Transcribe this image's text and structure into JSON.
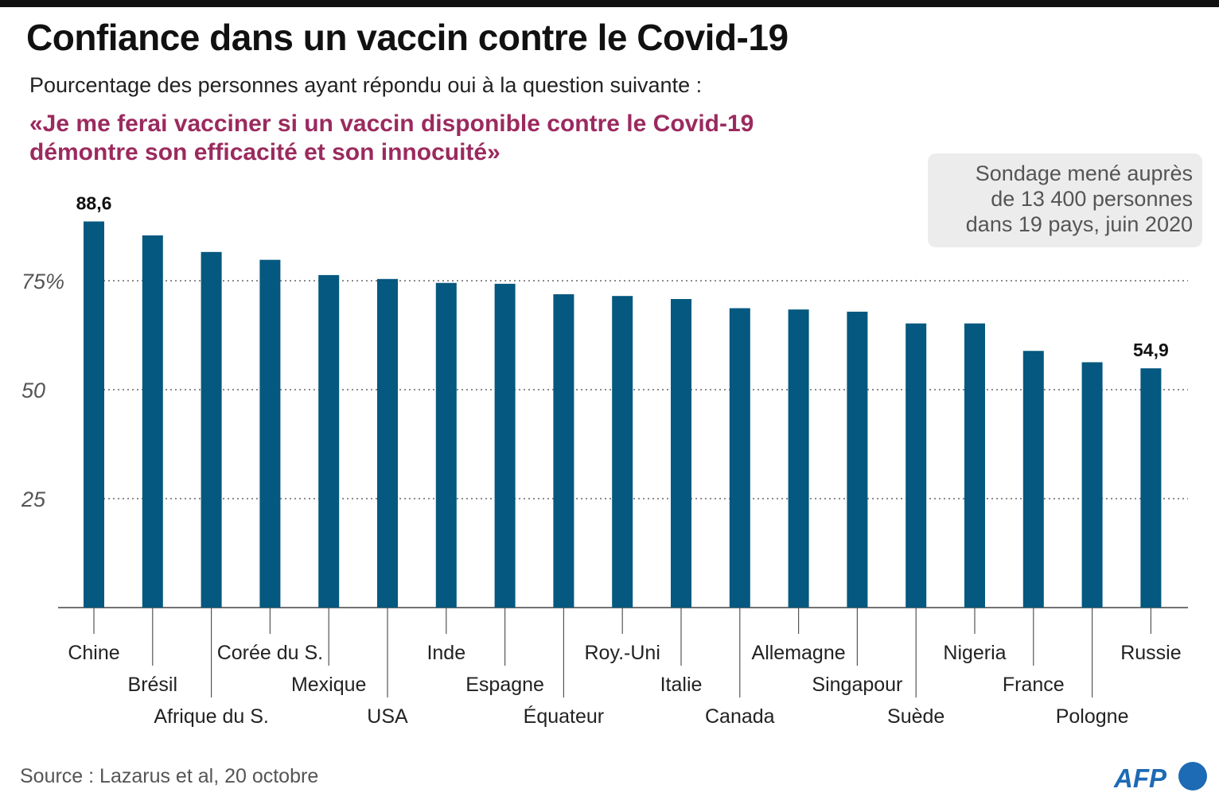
{
  "title": "Confiance dans un vaccin contre le Covid-19",
  "subtitle": "Pourcentage des personnes ayant répondu oui à la question suivante :",
  "quote_line1": "«Je me ferai vacciner si un vaccin disponible contre le Covid-19",
  "quote_line2": "démontre son efficacité et son innocuité»",
  "note_line1": "Sondage mené auprès",
  "note_line2": "de 13 400 personnes",
  "note_line3": "dans 19 pays, juin 2020",
  "source": "Source : Lazarus et al, 20 octobre",
  "logo_text": "AFP",
  "colors": {
    "bar": "#05587f",
    "quote": "#9b2a5e",
    "logo": "#1d6ab5"
  },
  "chart_data": {
    "type": "bar",
    "title": "Confiance dans un vaccin contre le Covid-19",
    "categories": [
      "Chine",
      "Brésil",
      "Afrique du S.",
      "Corée du S.",
      "Mexique",
      "USA",
      "Inde",
      "Espagne",
      "Équateur",
      "Roy.-Uni",
      "Italie",
      "Canada",
      "Allemagne",
      "Singapour",
      "Suède",
      "Nigeria",
      "France",
      "Pologne",
      "Russie"
    ],
    "values": [
      88.6,
      85.4,
      81.6,
      79.8,
      76.3,
      75.4,
      74.5,
      74.3,
      71.9,
      71.5,
      70.8,
      68.7,
      68.4,
      67.9,
      65.2,
      65.2,
      58.9,
      56.3,
      54.9
    ],
    "data_labels": [
      {
        "category": "Chine",
        "text": "88,6"
      },
      {
        "category": "Russie",
        "text": "54,9"
      }
    ],
    "yticks": [
      {
        "value": 25,
        "label": "25"
      },
      {
        "value": 50,
        "label": "50"
      },
      {
        "value": 75,
        "label": "75%"
      }
    ],
    "ylim": [
      0,
      100
    ],
    "xlabel": "",
    "ylabel": "",
    "grid": "horizontal dotted at ticks",
    "legend": "none"
  }
}
